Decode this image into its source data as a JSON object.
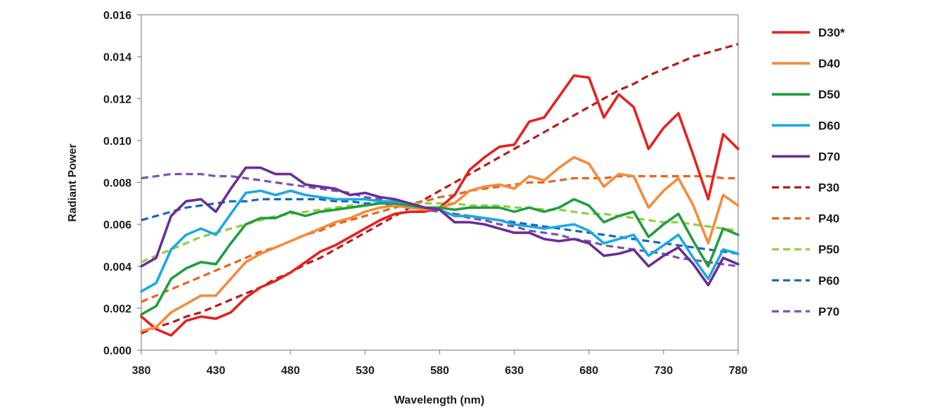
{
  "chart_data": {
    "type": "line",
    "title": "",
    "xlabel": "Wavelength (nm)",
    "ylabel": "Radiant Power",
    "xlim": [
      380,
      780
    ],
    "ylim": [
      0,
      0.016
    ],
    "x_ticks": [
      "380",
      "430",
      "480",
      "530",
      "580",
      "630",
      "680",
      "730",
      "780"
    ],
    "y_ticks": [
      "0.000",
      "0.002",
      "0.004",
      "0.006",
      "0.008",
      "0.010",
      "0.012",
      "0.014",
      "0.016"
    ],
    "grid": false,
    "legend_position": "right",
    "x": [
      380,
      390,
      400,
      410,
      420,
      430,
      440,
      450,
      460,
      470,
      480,
      490,
      500,
      510,
      520,
      530,
      540,
      550,
      560,
      570,
      580,
      590,
      600,
      610,
      620,
      630,
      640,
      650,
      660,
      670,
      680,
      690,
      700,
      710,
      720,
      730,
      740,
      750,
      760,
      770,
      780
    ],
    "series": [
      {
        "name": "D30*",
        "style": "solid",
        "color": "#e8201f",
        "values": [
          0.0016,
          0.001,
          0.0007,
          0.0014,
          0.0016,
          0.0015,
          0.0018,
          0.0025,
          0.003,
          0.0033,
          0.0037,
          0.0042,
          0.0047,
          0.005,
          0.0054,
          0.0058,
          0.0062,
          0.0065,
          0.0066,
          0.0066,
          0.0068,
          0.0074,
          0.0086,
          0.0092,
          0.0097,
          0.0098,
          0.0109,
          0.0111,
          0.0121,
          0.0131,
          0.013,
          0.0111,
          0.0122,
          0.0116,
          0.0096,
          0.0106,
          0.0113,
          0.0093,
          0.0072,
          0.0103,
          0.0096
        ]
      },
      {
        "name": "D40",
        "style": "solid",
        "color": "#f58a3a",
        "values": [
          0.0009,
          0.0011,
          0.0018,
          0.0022,
          0.0026,
          0.0026,
          0.0034,
          0.0042,
          0.0046,
          0.0049,
          0.0052,
          0.0055,
          0.0058,
          0.0061,
          0.0063,
          0.0066,
          0.0068,
          0.0069,
          0.0068,
          0.0067,
          0.0068,
          0.007,
          0.0076,
          0.0078,
          0.0079,
          0.0077,
          0.0083,
          0.0081,
          0.0087,
          0.0092,
          0.0089,
          0.0078,
          0.0084,
          0.0083,
          0.0068,
          0.0076,
          0.0082,
          0.0069,
          0.0051,
          0.0074,
          0.0069
        ]
      },
      {
        "name": "D50",
        "style": "solid",
        "color": "#1f9e3d",
        "values": [
          0.0017,
          0.0021,
          0.0034,
          0.0039,
          0.0042,
          0.0041,
          0.0051,
          0.006,
          0.0063,
          0.0063,
          0.0066,
          0.0064,
          0.0066,
          0.0067,
          0.0068,
          0.0069,
          0.007,
          0.007,
          0.0069,
          0.0068,
          0.0068,
          0.0067,
          0.0068,
          0.0068,
          0.0068,
          0.0066,
          0.0068,
          0.0066,
          0.0068,
          0.0072,
          0.0069,
          0.0061,
          0.0064,
          0.0066,
          0.0054,
          0.006,
          0.0065,
          0.0052,
          0.004,
          0.0058,
          0.0055
        ]
      },
      {
        "name": "D60",
        "style": "solid",
        "color": "#1aa8e6",
        "values": [
          0.0028,
          0.0032,
          0.0048,
          0.0055,
          0.0058,
          0.0055,
          0.0065,
          0.0075,
          0.0076,
          0.0074,
          0.0076,
          0.0074,
          0.0073,
          0.0072,
          0.0072,
          0.0072,
          0.0071,
          0.0071,
          0.007,
          0.0068,
          0.0067,
          0.0064,
          0.0064,
          0.0063,
          0.0062,
          0.006,
          0.0059,
          0.0058,
          0.0059,
          0.006,
          0.0057,
          0.0051,
          0.0053,
          0.0055,
          0.0045,
          0.005,
          0.0055,
          0.0044,
          0.0034,
          0.0048,
          0.0046
        ]
      },
      {
        "name": "D70",
        "style": "solid",
        "color": "#6a2d96",
        "values": [
          0.004,
          0.0044,
          0.0064,
          0.0071,
          0.0072,
          0.0066,
          0.0077,
          0.0087,
          0.0087,
          0.0084,
          0.0084,
          0.0079,
          0.0078,
          0.0077,
          0.0074,
          0.0075,
          0.0073,
          0.0072,
          0.007,
          0.0068,
          0.0067,
          0.0061,
          0.0061,
          0.006,
          0.0058,
          0.0056,
          0.0056,
          0.0053,
          0.0052,
          0.0053,
          0.0051,
          0.0045,
          0.0046,
          0.0048,
          0.004,
          0.0045,
          0.0049,
          0.0041,
          0.0031,
          0.0044,
          0.0041
        ]
      },
      {
        "name": "P30",
        "style": "dashed",
        "color": "#b81a1a",
        "values": [
          0.0008,
          0.0011,
          0.0013,
          0.0016,
          0.0018,
          0.0021,
          0.0024,
          0.0027,
          0.003,
          0.0034,
          0.0037,
          0.0041,
          0.0044,
          0.0048,
          0.0052,
          0.0056,
          0.006,
          0.0064,
          0.0068,
          0.0072,
          0.0076,
          0.008,
          0.0084,
          0.0088,
          0.0092,
          0.0096,
          0.01,
          0.0104,
          0.0108,
          0.0112,
          0.0116,
          0.012,
          0.0124,
          0.0127,
          0.0131,
          0.0134,
          0.0137,
          0.014,
          0.0142,
          0.0144,
          0.0146
        ]
      },
      {
        "name": "P40",
        "style": "dashed",
        "color": "#e8641a",
        "values": [
          0.0023,
          0.0026,
          0.0029,
          0.0032,
          0.0035,
          0.0038,
          0.0041,
          0.0044,
          0.0047,
          0.0049,
          0.0052,
          0.0055,
          0.0057,
          0.006,
          0.0062,
          0.0064,
          0.0066,
          0.0068,
          0.007,
          0.0071,
          0.0073,
          0.0074,
          0.0076,
          0.0077,
          0.0078,
          0.0079,
          0.008,
          0.008,
          0.0081,
          0.0082,
          0.0082,
          0.0082,
          0.0083,
          0.0083,
          0.0083,
          0.0083,
          0.0083,
          0.0083,
          0.0083,
          0.0082,
          0.0082
        ]
      },
      {
        "name": "P50",
        "style": "dashed",
        "color": "#8cd13c",
        "values": [
          0.0042,
          0.0045,
          0.0048,
          0.0051,
          0.0054,
          0.0056,
          0.0058,
          0.006,
          0.0062,
          0.0064,
          0.0065,
          0.0066,
          0.0067,
          0.0068,
          0.0069,
          0.0069,
          0.007,
          0.007,
          0.007,
          0.007,
          0.007,
          0.007,
          0.0069,
          0.0069,
          0.0069,
          0.0068,
          0.0068,
          0.0067,
          0.0067,
          0.0066,
          0.0065,
          0.0065,
          0.0064,
          0.0063,
          0.0062,
          0.0061,
          0.0061,
          0.006,
          0.0059,
          0.0058,
          0.0057
        ]
      },
      {
        "name": "P60",
        "style": "dashed",
        "color": "#1565c0",
        "values": [
          0.0062,
          0.0064,
          0.0066,
          0.0068,
          0.0069,
          0.007,
          0.0071,
          0.0071,
          0.0072,
          0.0072,
          0.0072,
          0.0072,
          0.0072,
          0.0071,
          0.0071,
          0.007,
          0.007,
          0.0069,
          0.0068,
          0.0067,
          0.0066,
          0.0065,
          0.0064,
          0.0063,
          0.0062,
          0.0061,
          0.006,
          0.0059,
          0.0058,
          0.0057,
          0.0056,
          0.0055,
          0.0054,
          0.0053,
          0.0052,
          0.0051,
          0.005,
          0.0049,
          0.0048,
          0.0047,
          0.0046
        ]
      },
      {
        "name": "P70",
        "style": "dashed",
        "color": "#7b52b3",
        "values": [
          0.0082,
          0.0083,
          0.0084,
          0.0084,
          0.0084,
          0.0083,
          0.0083,
          0.0082,
          0.0081,
          0.008,
          0.0079,
          0.0078,
          0.0077,
          0.0076,
          0.0075,
          0.0073,
          0.0072,
          0.007,
          0.0069,
          0.0067,
          0.0066,
          0.0065,
          0.0063,
          0.0062,
          0.006,
          0.0059,
          0.0057,
          0.0056,
          0.0055,
          0.0053,
          0.0052,
          0.005,
          0.0049,
          0.0048,
          0.0047,
          0.0046,
          0.0044,
          0.0043,
          0.0042,
          0.0041,
          0.004
        ]
      }
    ]
  }
}
